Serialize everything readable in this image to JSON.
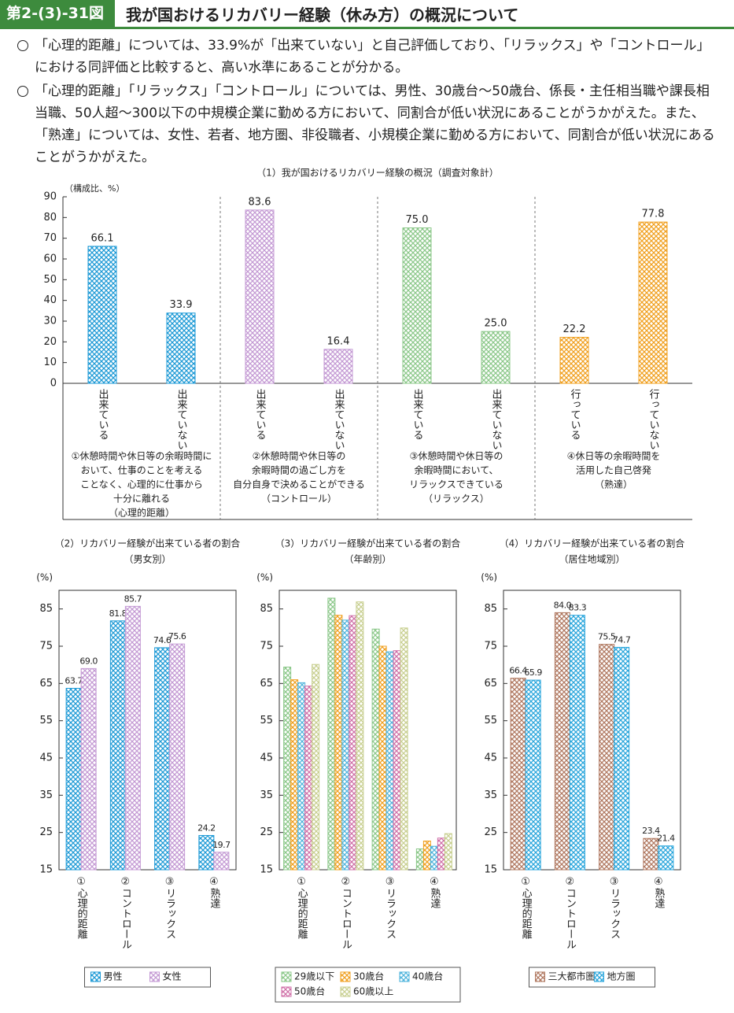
{
  "header": {
    "label": "第2-(3)-31図",
    "title": "我が国おけるリカバリー経験（休み方）の概況について"
  },
  "paragraphs": [
    "「心理的距離」については、33.9%が「出来ていない」と自己評価しており、「リラックス」や「コントロール」における同評価と比較すると、高い水準にあることが分かる。",
    "「心理的距離」「リラックス」「コントロール」については、男性、30歳台～50歳台、係長・主任相当職や課長相当職、50人超～300以下の中規模企業に勤める方において、同割合が低い状況にあることがうかがえた。また、「熟達」については、女性、若者、地方圏、非役職者、小規模企業に勤める方において、同割合が低い状況にあることがうかがえた。"
  ],
  "chart_data": [
    {
      "type": "bar",
      "title": "（1）我が国おけるリカバリー経験の概況（調査対象計）",
      "y_label": "（構成比、%）",
      "categories": [
        "出来ている",
        "出来ていない",
        "出来ている",
        "出来ていない",
        "出来ている",
        "出来ていない",
        "行っている",
        "行っていない"
      ],
      "values": [
        66.1,
        33.9,
        83.6,
        16.4,
        75.0,
        25.0,
        22.2,
        77.8
      ],
      "value_labels": [
        "66.1",
        "33.9",
        "83.6",
        "16.4",
        "75.0",
        "25.0",
        "22.2",
        "77.8"
      ],
      "colors": [
        "#1e9ad6",
        "#1e9ad6",
        "#c49ad4",
        "#c49ad4",
        "#8cc88a",
        "#8cc88a",
        "#f0a020",
        "#f0a020"
      ],
      "group_labels": [
        [
          "①休憩時間や休日等の余暇時間に",
          "おいて、仕事のことを考える",
          "ことなく、心理的に仕事から",
          "十分に離れる",
          "（心理的距離）"
        ],
        [
          "②休憩時間や休日等の",
          "余暇時間の過ごし方を",
          "自分自身で決めることができる",
          "（コントロール）"
        ],
        [
          "③休憩時間や休日等の",
          "余暇時間において、",
          "リラックスできている",
          "（リラックス）"
        ],
        [
          "④休日等の余暇時間を",
          "活用した自己啓発",
          "（熟達）"
        ]
      ],
      "ylim": [
        0,
        90
      ],
      "yticks": [
        0,
        10,
        20,
        30,
        40,
        50,
        60,
        70,
        80,
        90
      ]
    },
    {
      "type": "grouped_bar",
      "title": "（2）リカバリー経験が出来ている者の割合",
      "subtitle": "（男女別）",
      "y_label": "(%)",
      "categories": [
        "①心理的距離",
        "②コントロール",
        "③リラックス",
        "④熟達"
      ],
      "series": [
        {
          "name": "男性",
          "color": "#1e9ad6",
          "values": [
            63.7,
            81.8,
            74.6,
            24.2
          ],
          "value_labels": [
            "63.7",
            "81.8",
            "74.6",
            "24.2"
          ]
        },
        {
          "name": "女性",
          "color": "#c49ad4",
          "values": [
            69.0,
            85.7,
            75.6,
            19.7
          ],
          "value_labels": [
            "69.0",
            "85.7",
            "75.6",
            "19.7"
          ]
        }
      ],
      "ylim": [
        15,
        90
      ],
      "yticks": [
        15,
        25,
        35,
        45,
        55,
        65,
        75,
        85
      ]
    },
    {
      "type": "grouped_bar",
      "title": "（3）リカバリー経験が出来ている者の割合",
      "subtitle": "（年齢別）",
      "y_label": "(%)",
      "categories": [
        "①心理的距離",
        "②コントロール",
        "③リラックス",
        "④熟達"
      ],
      "series": [
        {
          "name": "29歳以下",
          "color": "#8cc88a",
          "values": [
            69.4,
            87.9,
            79.6,
            20.6
          ]
        },
        {
          "name": "30歳台",
          "color": "#f0a020",
          "values": [
            66.0,
            83.3,
            75.0,
            22.7
          ]
        },
        {
          "name": "40歳台",
          "color": "#4fb4dc",
          "values": [
            65.2,
            82.0,
            73.5,
            21.3
          ]
        },
        {
          "name": "50歳台",
          "color": "#d070a8",
          "values": [
            64.3,
            83.2,
            73.8,
            23.5
          ]
        },
        {
          "name": "60歳以上",
          "color": "#c8cf90",
          "values": [
            70.1,
            86.9,
            79.9,
            24.7
          ]
        }
      ],
      "ylim": [
        15,
        90
      ],
      "yticks": [
        15,
        25,
        35,
        45,
        55,
        65,
        75,
        85
      ]
    },
    {
      "type": "grouped_bar",
      "title": "（4）リカバリー経験が出来ている者の割合",
      "subtitle": "（居住地域別）",
      "y_label": "(%)",
      "categories": [
        "①心理的距離",
        "②コントロール",
        "③リラックス",
        "④熟達"
      ],
      "series": [
        {
          "name": "三大都市圏",
          "color": "#b07860",
          "values": [
            66.4,
            84.0,
            75.5,
            23.4
          ],
          "value_labels": [
            "66.4",
            "84.0",
            "75.5",
            "23.4"
          ]
        },
        {
          "name": "地方圏",
          "color": "#2aa6dc",
          "values": [
            65.9,
            83.3,
            74.7,
            21.4
          ],
          "value_labels": [
            "65.9",
            "83.3",
            "74.7",
            "21.4"
          ]
        }
      ],
      "ylim": [
        15,
        90
      ],
      "yticks": [
        15,
        25,
        35,
        45,
        55,
        65,
        75,
        85
      ]
    }
  ]
}
